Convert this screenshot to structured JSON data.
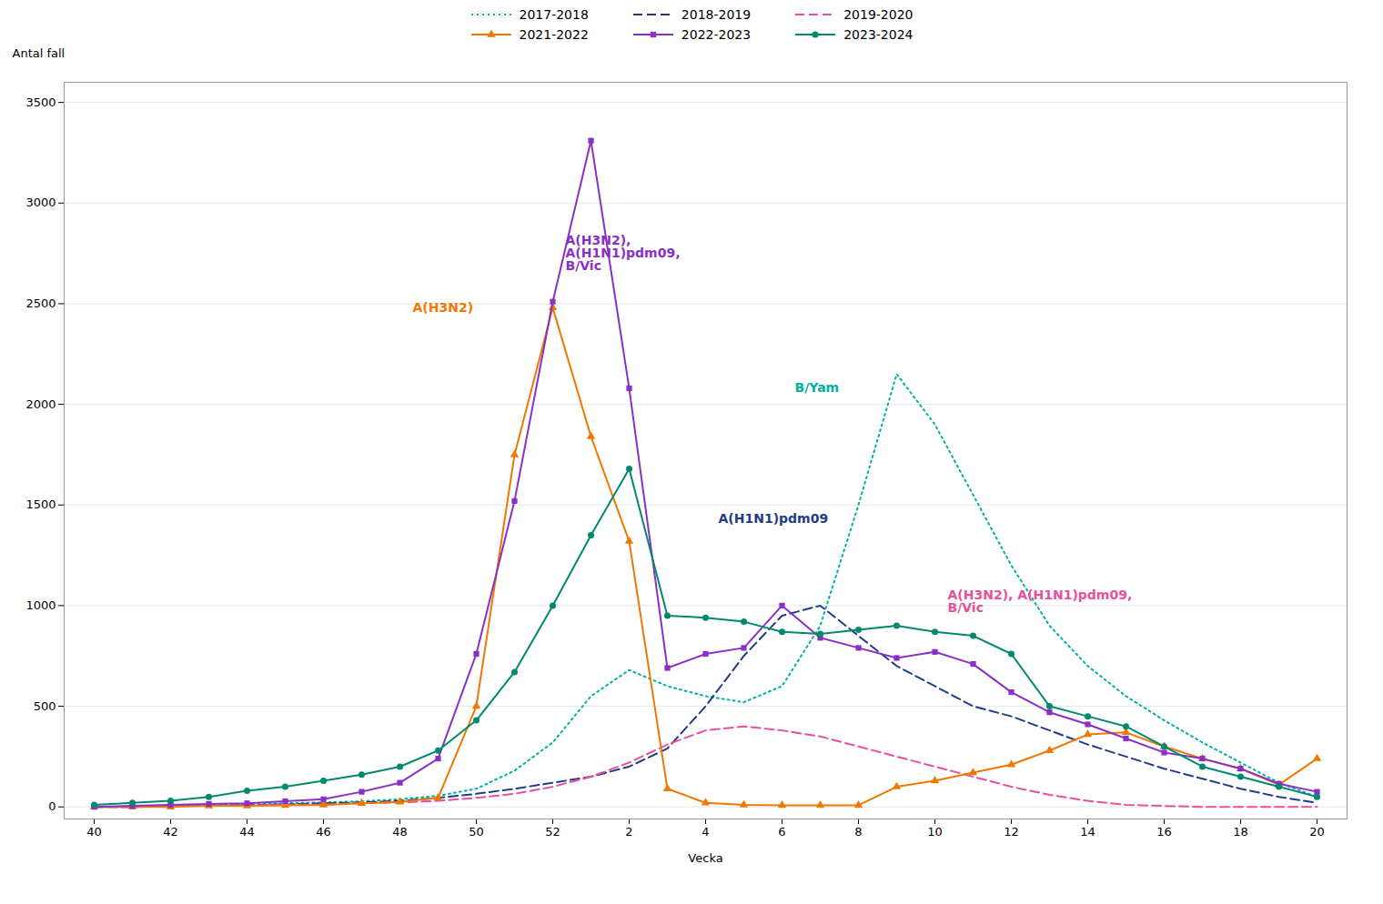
{
  "chart_data": {
    "type": "line",
    "xlabel": "Vecka",
    "ylabel": "Antal fall",
    "categories": [
      "40",
      null,
      "42",
      null,
      "44",
      null,
      "46",
      null,
      "48",
      null,
      "50",
      null,
      "52",
      null,
      "2",
      null,
      "4",
      null,
      "6",
      null,
      "8",
      null,
      "10",
      null,
      "12",
      null,
      "14",
      null,
      "16",
      null,
      "18",
      null,
      "20"
    ],
    "series": [
      {
        "name": "2017-2018",
        "color": "#00b0a0",
        "line_style": "dotted",
        "marker": null,
        "values": [
          0,
          0,
          5,
          8,
          12,
          18,
          22,
          28,
          38,
          55,
          90,
          180,
          320,
          550,
          680,
          600,
          550,
          520,
          600,
          900,
          1500,
          2150,
          1900,
          1550,
          1200,
          900,
          700,
          550,
          430,
          320,
          220,
          120,
          50
        ]
      },
      {
        "name": "2018-2019",
        "color": "#1f3c88",
        "line_style": "dashed",
        "marker": null,
        "values": [
          0,
          0,
          5,
          5,
          10,
          12,
          18,
          22,
          30,
          45,
          65,
          90,
          120,
          150,
          200,
          290,
          500,
          750,
          950,
          1000,
          850,
          700,
          600,
          500,
          450,
          380,
          310,
          250,
          190,
          140,
          90,
          50,
          20
        ]
      },
      {
        "name": "2019-2020",
        "color": "#e8509a",
        "line_style": "dashed",
        "marker": null,
        "values": [
          0,
          0,
          5,
          5,
          8,
          10,
          12,
          18,
          22,
          30,
          45,
          65,
          100,
          150,
          220,
          310,
          380,
          400,
          380,
          350,
          300,
          250,
          200,
          150,
          100,
          60,
          30,
          10,
          5,
          0,
          0,
          0,
          0
        ]
      },
      {
        "name": "2021-2022",
        "color": "#f07800",
        "line_style": "solid",
        "marker": "triangle",
        "values": [
          0,
          0,
          0,
          5,
          5,
          8,
          10,
          18,
          25,
          45,
          500,
          1750,
          2480,
          1840,
          1320,
          90,
          20,
          10,
          8,
          8,
          8,
          100,
          130,
          170,
          210,
          280,
          360,
          370,
          300,
          240,
          190,
          110,
          240
        ]
      },
      {
        "name": "2022-2023",
        "color": "#8b2fc9",
        "line_style": "solid",
        "marker": "square",
        "values": [
          0,
          5,
          10,
          15,
          18,
          28,
          38,
          75,
          120,
          240,
          760,
          1520,
          2510,
          3310,
          2080,
          690,
          760,
          790,
          1000,
          840,
          790,
          740,
          770,
          710,
          570,
          470,
          410,
          340,
          270,
          240,
          190,
          115,
          75
        ]
      },
      {
        "name": "2023-2024",
        "color": "#00896e",
        "line_style": "solid",
        "marker": "circle",
        "values": [
          10,
          20,
          30,
          50,
          80,
          100,
          130,
          160,
          200,
          280,
          430,
          670,
          1000,
          1350,
          1680,
          950,
          940,
          920,
          870,
          860,
          880,
          900,
          870,
          850,
          760,
          500,
          450,
          400,
          300,
          200,
          150,
          100,
          50
        ]
      }
    ],
    "annotations": [
      {
        "text": "A(H3N2)",
        "x": "48",
        "y": 2480,
        "color": "#f07800"
      },
      {
        "text": "A(H3N2),\nA(H1N1)pdm09,\nB/Vic",
        "x": "52",
        "y": 2750,
        "color": "#8b2fc9"
      },
      {
        "text": "B/Yam",
        "x": "6",
        "y": 2080,
        "color": "#00b0a0"
      },
      {
        "text": "A(H1N1)pdm09",
        "x": "4",
        "y": 1430,
        "color": "#1f3c88"
      },
      {
        "text": "A(H3N2), A(H1N1)pdm09,\nB/Vic",
        "x": "10",
        "y": 1020,
        "color": "#e8509a"
      }
    ],
    "ylim": [
      -60,
      3600
    ],
    "yticks": [
      0,
      500,
      1000,
      1500,
      2000,
      2500,
      3000,
      3500
    ],
    "grid": true,
    "legend": "top"
  }
}
